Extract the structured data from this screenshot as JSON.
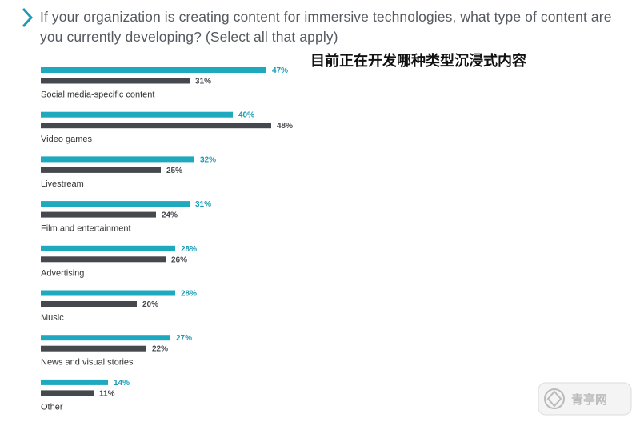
{
  "header": {
    "question": "If your organization is creating content for immersive technologies, what type of content are you currently developing? (Select all that apply)",
    "chinese_title": "目前正在开发哪种类型沉浸式内容"
  },
  "colors": {
    "series_a": "#1ea9bf",
    "series_b": "#45484d",
    "chevron": "#1c9cb6"
  },
  "watermark": {
    "logo_text": "青亭网"
  },
  "chart_data": {
    "type": "bar",
    "orientation": "horizontal",
    "categories": [
      "Social media-specific content",
      "Video games",
      "Livestream",
      "Film and entertainment",
      "Advertising",
      "Music",
      "News and visual stories",
      "Other"
    ],
    "series": [
      {
        "values": [
          47,
          40,
          32,
          31,
          28,
          28,
          27,
          14
        ]
      },
      {
        "values": [
          31,
          48,
          25,
          24,
          26,
          20,
          22,
          11
        ]
      }
    ],
    "value_labels": [
      [
        "47%",
        "40%",
        "32%",
        "31%",
        "28%",
        "28%",
        "27%",
        "14%"
      ],
      [
        "31%",
        "48%",
        "25%",
        "24%",
        "26%",
        "20%",
        "22%",
        "11%"
      ]
    ],
    "unit": "%",
    "xlim": [
      0,
      100
    ],
    "grid": false,
    "legend": "none"
  }
}
